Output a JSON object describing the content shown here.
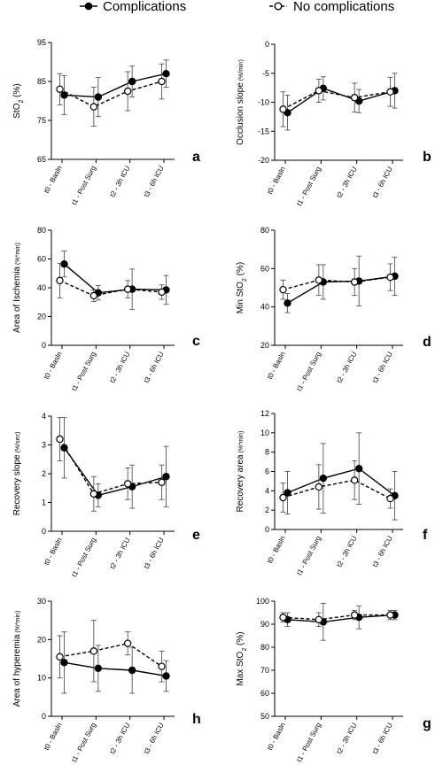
{
  "legend": {
    "complications": "Complications",
    "no_complications": "No complications"
  },
  "colors": {
    "line": "#000000",
    "background": "#ffffff"
  },
  "chart_data": [
    {
      "type": "line",
      "panel": "a",
      "ylabel": "StO",
      "ylabel_sub": "2",
      "ylabel_rest": " (%)",
      "ylabel_unit": "",
      "ylim": [
        65,
        95
      ],
      "yticks": [
        65,
        75,
        85,
        95
      ],
      "categories": [
        "t0 - Basln",
        "t1 - Post Surg",
        "t2 - 3h ICU",
        "t3 - 6h ICU"
      ],
      "series": [
        {
          "name": "Complications",
          "values": [
            81.5,
            81,
            85,
            87
          ],
          "err": [
            5,
            5,
            4,
            3.5
          ]
        },
        {
          "name": "No complications",
          "values": [
            83,
            78.5,
            82.5,
            85
          ],
          "err": [
            4,
            5,
            5,
            4.5
          ]
        }
      ]
    },
    {
      "type": "line",
      "panel": "b",
      "ylabel": "Occlusion slope",
      "ylabel_sub": "",
      "ylabel_rest": "",
      "ylabel_unit": " (%/min)",
      "ylim": [
        -20,
        0
      ],
      "yticks": [
        -20,
        -15,
        -10,
        -5,
        0
      ],
      "categories": [
        "t0 - Basln",
        "t1 - Post Surg",
        "t2 - 3h ICU",
        "t3 - 6h ICU"
      ],
      "series": [
        {
          "name": "Complications",
          "values": [
            -11.8,
            -7.6,
            -9.8,
            -8
          ],
          "err": [
            3,
            2,
            2,
            3
          ]
        },
        {
          "name": "No complications",
          "values": [
            -11.2,
            -8,
            -9.2,
            -8.2
          ],
          "err": [
            3,
            2,
            2.5,
            2.5
          ]
        }
      ]
    },
    {
      "type": "line",
      "panel": "c",
      "ylabel": "Area of Ischemia",
      "ylabel_sub": "",
      "ylabel_rest": "",
      "ylabel_unit": " (%*min)",
      "ylim": [
        0,
        80
      ],
      "yticks": [
        0,
        20,
        40,
        60,
        80
      ],
      "categories": [
        "t0 - Basln",
        "t1 - Post Surg",
        "t2 - 3h ICU",
        "t3 - 6h ICU"
      ],
      "series": [
        {
          "name": "Complications",
          "values": [
            56.5,
            36.5,
            39,
            38.5
          ],
          "err": [
            9,
            5,
            14,
            10
          ]
        },
        {
          "name": "No complications",
          "values": [
            45,
            34.5,
            39,
            37
          ],
          "err": [
            12,
            4,
            6,
            5
          ]
        }
      ]
    },
    {
      "type": "line",
      "panel": "d",
      "ylabel": "Min StO",
      "ylabel_sub": "2",
      "ylabel_rest": " (%)",
      "ylabel_unit": "",
      "ylim": [
        20,
        80
      ],
      "yticks": [
        20,
        40,
        60,
        80
      ],
      "categories": [
        "t0 - Basln",
        "t1 - Post Surg",
        "t2 - 3h ICU",
        "t3 - 6h ICU"
      ],
      "series": [
        {
          "name": "Complications",
          "values": [
            42,
            53,
            53.5,
            56
          ],
          "err": [
            5,
            9,
            13,
            10
          ]
        },
        {
          "name": "No complications",
          "values": [
            49,
            54,
            53,
            55.5
          ],
          "err": [
            5,
            8,
            7,
            7
          ]
        }
      ]
    },
    {
      "type": "line",
      "panel": "e",
      "ylabel": "Recovery slope",
      "ylabel_sub": "",
      "ylabel_rest": "",
      "ylabel_unit": " (%/sec)",
      "ylim": [
        0,
        4
      ],
      "yticks": [
        0,
        1,
        2,
        3,
        4
      ],
      "categories": [
        "t0 - Basln",
        "t1 - Post Surg",
        "t2 - 3h ICU",
        "t3 - 6h ICU"
      ],
      "series": [
        {
          "name": "Complications",
          "values": [
            2.9,
            1.25,
            1.55,
            1.9
          ],
          "err": [
            1.05,
            0.4,
            0.75,
            1.05
          ]
        },
        {
          "name": "No complications",
          "values": [
            3.2,
            1.3,
            1.65,
            1.7
          ],
          "err": [
            0.75,
            0.6,
            0.55,
            0.6
          ]
        }
      ]
    },
    {
      "type": "line",
      "panel": "f",
      "ylabel": "Recovery area",
      "ylabel_sub": "",
      "ylabel_rest": "",
      "ylabel_unit": " (%*min)",
      "ylim": [
        0,
        12
      ],
      "yticks": [
        0,
        2,
        4,
        6,
        8,
        10,
        12
      ],
      "categories": [
        "t0 - Basln",
        "t1 - Post Surg",
        "t2 - 3h ICU",
        "t3 - 6h ICU"
      ],
      "series": [
        {
          "name": "Complications",
          "values": [
            3.8,
            5.3,
            6.3,
            3.5
          ],
          "err": [
            2.2,
            3.6,
            3.7,
            2.5
          ]
        },
        {
          "name": "No complications",
          "values": [
            3.3,
            4.4,
            5.1,
            3.2
          ],
          "err": [
            1.5,
            2.3,
            2,
            1
          ]
        }
      ]
    },
    {
      "type": "line",
      "panel": "h",
      "ylabel": "Area of hyperemia",
      "ylabel_sub": "",
      "ylabel_rest": "",
      "ylabel_unit": " (%*min)",
      "ylim": [
        0,
        30
      ],
      "yticks": [
        0,
        10,
        20,
        30
      ],
      "categories": [
        "t0 - Basln",
        "t1 - Post Surg",
        "t2 - 3h ICU",
        "t3 - 6h ICU"
      ],
      "series": [
        {
          "name": "Complications",
          "values": [
            14,
            12.5,
            12,
            10.5
          ],
          "err": [
            8,
            6,
            6,
            4
          ]
        },
        {
          "name": "No complications",
          "values": [
            15.5,
            17,
            19,
            13
          ],
          "err": [
            5.5,
            8,
            3,
            4
          ]
        }
      ]
    },
    {
      "type": "line",
      "panel": "g",
      "ylabel": "Max StO",
      "ylabel_sub": "2",
      "ylabel_rest": " (%)",
      "ylabel_unit": "",
      "ylim": [
        50,
        100
      ],
      "yticks": [
        50,
        60,
        70,
        80,
        90,
        100
      ],
      "categories": [
        "t0 - Basln",
        "t1 - Post Surg",
        "t2 - 3h ICU",
        "t3 - 6h ICU"
      ],
      "series": [
        {
          "name": "Complications",
          "values": [
            92,
            91,
            93,
            94
          ],
          "err": [
            3,
            8,
            5,
            2
          ]
        },
        {
          "name": "No complications",
          "values": [
            93,
            92,
            94,
            94
          ],
          "err": [
            2,
            3,
            2,
            2
          ]
        }
      ]
    }
  ]
}
